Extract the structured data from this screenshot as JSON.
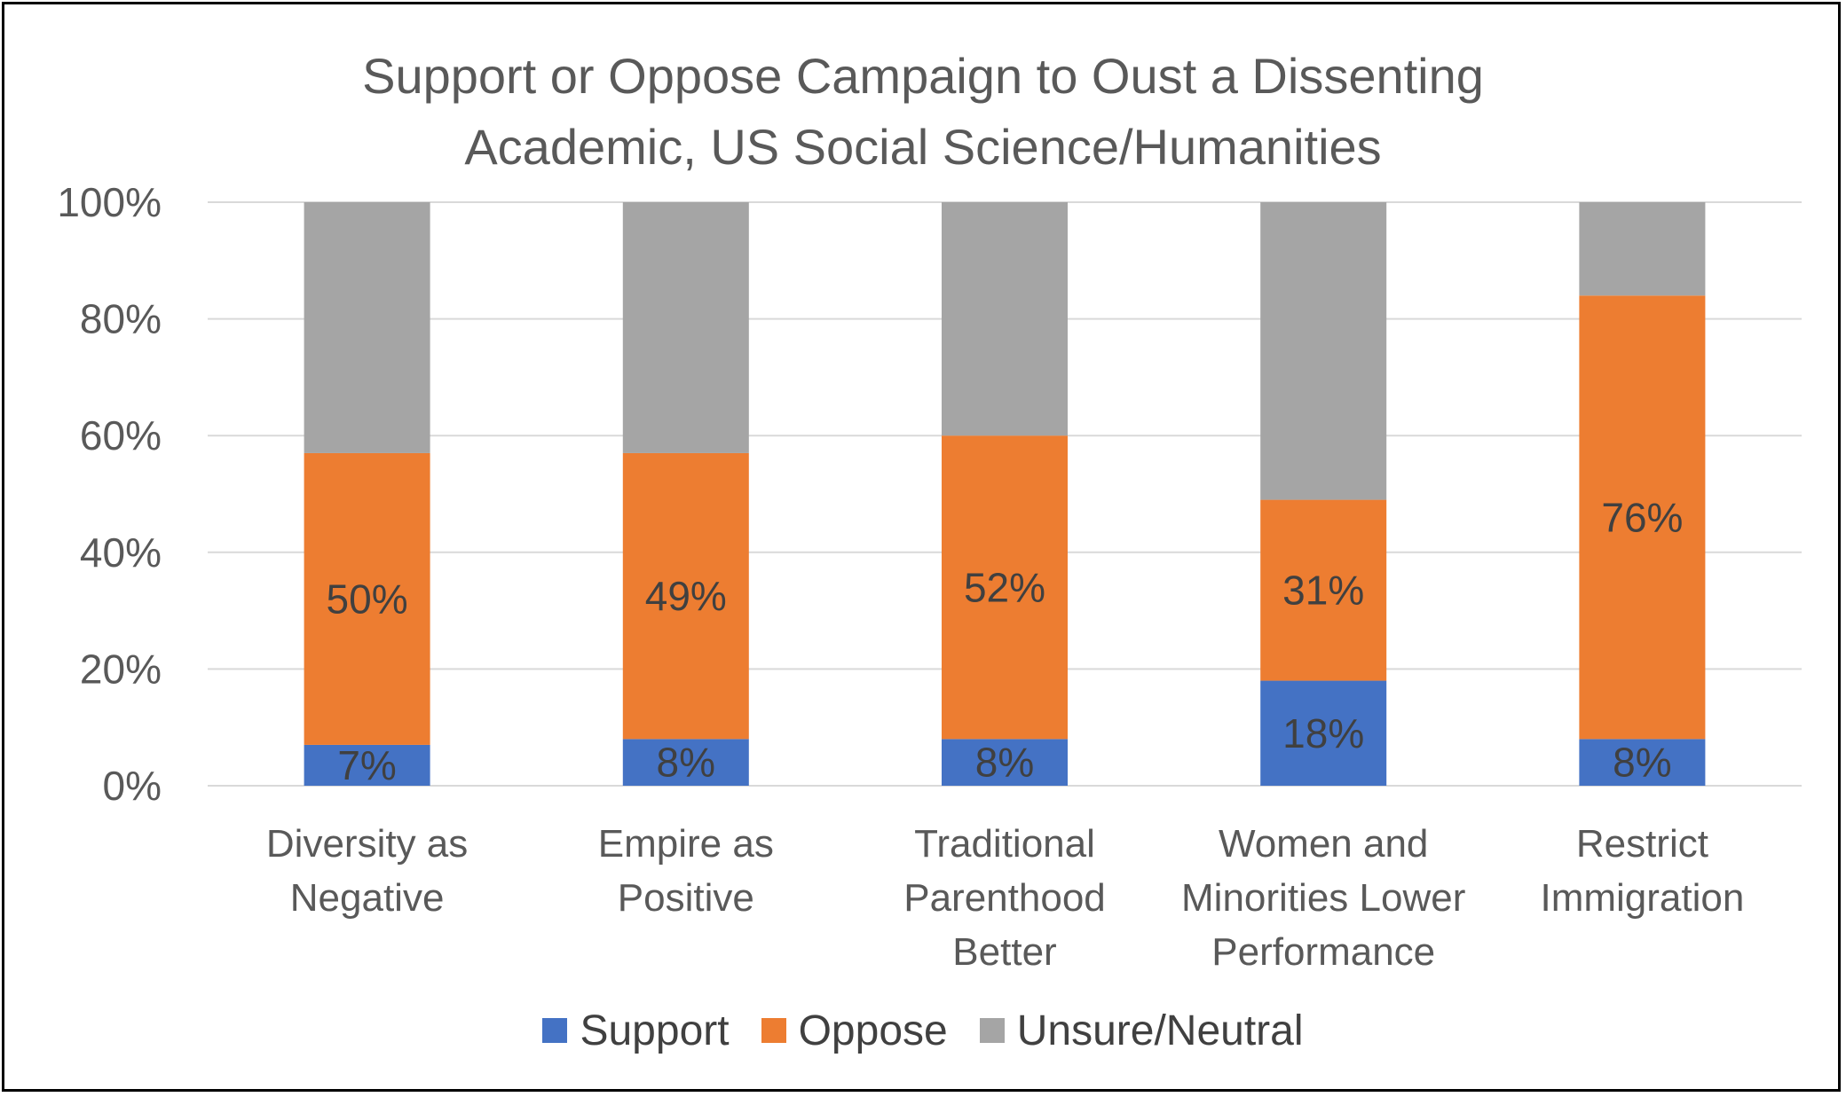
{
  "chart_data": {
    "type": "bar",
    "stacked": true,
    "title": "Support or Oppose Campaign to Oust a Dissenting\nAcademic, US Social Science/Humanities",
    "categories": [
      "Diversity as\nNegative",
      "Empire as\nPositive",
      "Traditional\nParenthood\nBetter",
      "Women and\nMinorities Lower\nPerformance",
      "Restrict\nImmigration"
    ],
    "series": [
      {
        "name": "Support",
        "color": "#4472C4",
        "values": [
          7,
          8,
          8,
          18,
          8
        ],
        "labels": [
          "7%",
          "8%",
          "8%",
          "18%",
          "8%"
        ]
      },
      {
        "name": "Oppose",
        "color": "#ED7D31",
        "values": [
          50,
          49,
          52,
          31,
          76
        ],
        "labels": [
          "50%",
          "49%",
          "52%",
          "31%",
          "76%"
        ]
      },
      {
        "name": "Unsure/Neutral",
        "color": "#A5A5A5",
        "values": [
          43,
          43,
          40,
          51,
          16
        ],
        "labels": []
      }
    ],
    "ylim": [
      0,
      100
    ],
    "yticks": [
      "0%",
      "20%",
      "40%",
      "60%",
      "80%",
      "100%"
    ],
    "grid": true,
    "legend_position": "bottom"
  }
}
